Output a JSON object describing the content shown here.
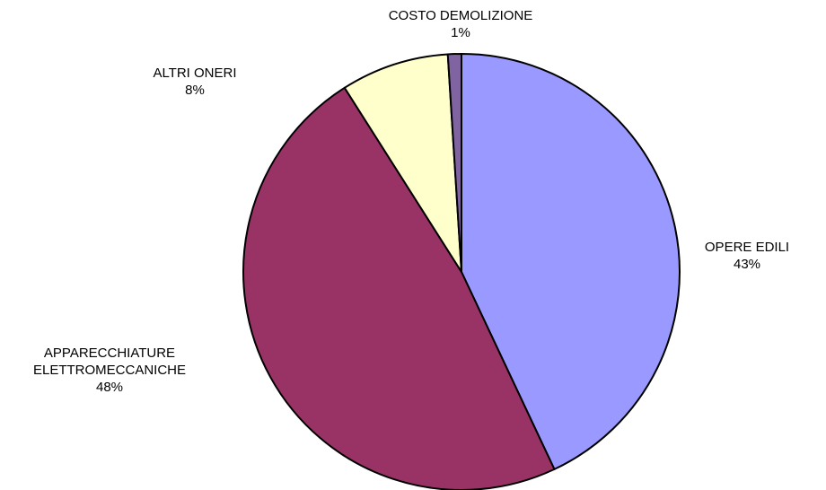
{
  "chart_data": {
    "type": "pie",
    "title": "",
    "start_angle_deg": 0,
    "direction": "clockwise",
    "slices": [
      {
        "label": [
          "OPERE EDILI"
        ],
        "percent_label": "43%",
        "value": 43,
        "color": "#9999ff"
      },
      {
        "label": [
          "APPARECCHIATURE",
          "ELETTROMECCANICHE"
        ],
        "percent_label": "48%",
        "value": 48,
        "color": "#993366"
      },
      {
        "label": [
          "ALTRI ONERI"
        ],
        "percent_label": "8%",
        "value": 8,
        "color": "#ffffcc"
      },
      {
        "label": [
          "COSTO DEMOLIZIONE"
        ],
        "percent_label": "1%",
        "value": 1,
        "color": "#8064a2"
      }
    ],
    "legend": "none",
    "border_color": "#000000"
  }
}
